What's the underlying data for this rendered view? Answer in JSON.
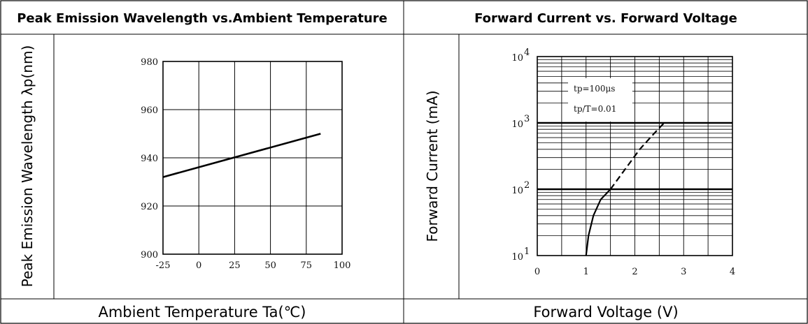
{
  "panels": [
    {
      "header": "Peak Emission Wavelength vs.Ambient Temperature",
      "footer": "Ambient Temperature Ta(℃)",
      "ylabel": "Peak Emission Wavelength λp(nm)"
    },
    {
      "header": "Forward Current vs. Forward Voltage",
      "footer": "Forward Voltage (V)",
      "ylabel": "Forward Current (mA)"
    }
  ],
  "chart_data": [
    {
      "type": "line",
      "title": "Peak Emission Wavelength vs.Ambient Temperature",
      "xlabel": "Ambient Temperature Ta(℃)",
      "ylabel": "Peak Emission Wavelength λp(nm)",
      "xlim": [
        -25,
        100
      ],
      "ylim": [
        900,
        980
      ],
      "xticks": [
        "-25",
        "0",
        "25",
        "50",
        "75",
        "100"
      ],
      "yticks": [
        "900",
        "920",
        "940",
        "960",
        "980"
      ],
      "grid": true,
      "series": [
        {
          "x": [
            -25,
            85
          ],
          "y": [
            932,
            950
          ]
        }
      ]
    },
    {
      "type": "line",
      "title": "Forward Current vs. Forward Voltage",
      "xlabel": "Forward Voltage (V)",
      "ylabel": "Forward Current (mA)",
      "xlim": [
        0,
        4
      ],
      "ylim": [
        10,
        10000
      ],
      "yscale": "log",
      "xticks": [
        "0",
        "1",
        "2",
        "3",
        "4"
      ],
      "yticks": [
        {
          "base": "10",
          "exp": "1"
        },
        {
          "base": "10",
          "exp": "2"
        },
        {
          "base": "10",
          "exp": "3"
        },
        {
          "base": "10",
          "exp": "4"
        }
      ],
      "grid": true,
      "annotations": [
        "tp=100μs",
        "tp/T=0.01"
      ],
      "series": [
        {
          "style": "solid",
          "x": [
            1.0,
            1.05,
            1.15,
            1.3,
            1.5
          ],
          "y": [
            10,
            20,
            40,
            70,
            100
          ]
        },
        {
          "style": "dashed",
          "x": [
            1.5,
            1.8,
            2.1,
            2.4,
            2.6
          ],
          "y": [
            100,
            200,
            400,
            700,
            1000
          ]
        }
      ]
    }
  ]
}
